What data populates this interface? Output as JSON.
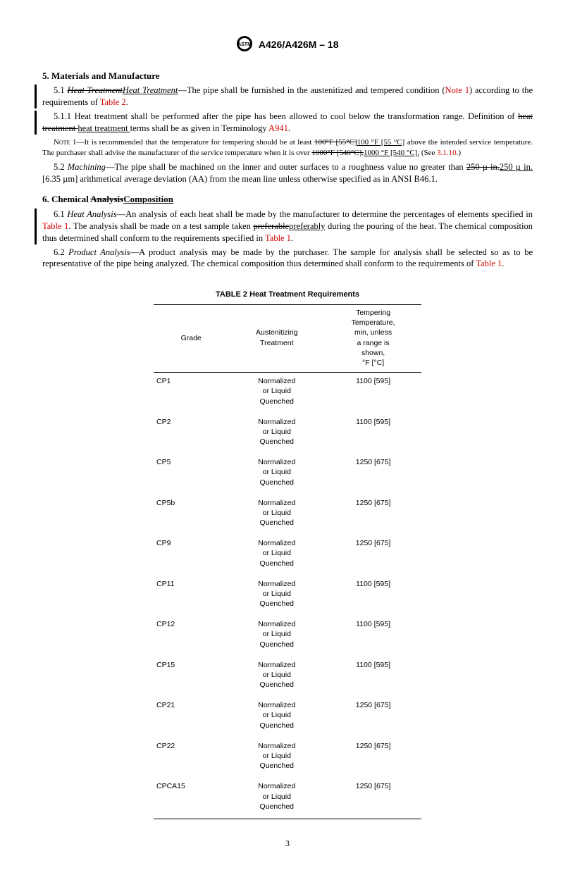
{
  "doc_header": "A426/A426M – 18",
  "sec5": {
    "heading": "5.  Materials and Manufacture",
    "p5_1_num": "5.1  ",
    "p5_1_strike_prefix": "Heat Treatment",
    "p5_1_under_prefix": "Heat Treatment",
    "p5_1_body_a": "—The pipe shall be furnished in the austenitized and tempered condition (",
    "p5_1_note_ref": "Note 1",
    "p5_1_body_b": ") according to the requirements of ",
    "p5_1_table_ref": "Table 2",
    "p5_1_body_c": ".",
    "p5_1_1_num": "5.1.1  ",
    "p5_1_1_body_a": "Heat treatment shall be performed after the pipe has been allowed to cool below the transformation range. Definition of ",
    "p5_1_1_strike": "heat treatment ",
    "p5_1_1_under": "heat treatment ",
    "p5_1_1_body_b": "terms shall be as given in Terminology ",
    "p5_1_1_ref": "A941",
    "p5_1_1_body_c": ".",
    "note1_label": "Note 1—",
    "note1_body_a": "It is recommended that the temperature for tempering should be at least ",
    "note1_strike1": "100°F [55°C]",
    "note1_under1": "100 °F [55 °C]",
    "note1_body_b": " above the intended service temperature. The purchaser shall advise the manufacturer of the service temperature when it is over ",
    "note1_strike2": "1000°F [540°C].",
    "note1_under2": "1000 °F [540 °C].",
    "note1_body_c": " (See ",
    "note1_ref": "3.1.10",
    "note1_body_d": ".)",
    "p5_2_num": "5.2  ",
    "p5_2_prefix_it": "Machining",
    "p5_2_body_a": "—The pipe shall be machined on the inner and outer surfaces to a roughness value no greater than ",
    "p5_2_strike": "250 µ in.",
    "p5_2_under": "250 µ in. ",
    "p5_2_body_b": "[6.35 µm] arithmetical average deviation (AA) from the mean line unless otherwise specified as in ANSI B46.1."
  },
  "sec6": {
    "heading_a": "6.  Chemical ",
    "heading_strike": "Analysis",
    "heading_under": "Composition",
    "p6_1_num": "6.1  ",
    "p6_1_prefix_it": "Heat Analysis",
    "p6_1_body_a": "—An analysis of each heat shall be made by the manufacturer to determine the percentages of elements specified in ",
    "p6_1_ref1": "Table 1",
    "p6_1_body_b": ". The analysis shall be made on a test sample taken ",
    "p6_1_strike": "preferable",
    "p6_1_under": "preferably",
    "p6_1_body_c": " during the pouring of the heat. The chemical composition thus determined shall conform to the requirements specified in ",
    "p6_1_ref2": "Table 1",
    "p6_1_body_d": ".",
    "p6_2_num": "6.2  ",
    "p6_2_prefix_it": "Product Analysis",
    "p6_2_body_a": "—A product analysis may be made by the purchaser. The sample for analysis shall be selected so as to be representative of the pipe being analyzed. The chemical composition thus determined shall conform to the requirements of ",
    "p6_2_ref": "Table 1",
    "p6_2_body_b": "."
  },
  "table2": {
    "title": "TABLE 2 Heat Treatment Requirements",
    "col1": "Grade",
    "col2": "Austenitizing\nTreatment",
    "col3": "Tempering\nTemperature,\nmin, unless\na range is\nshown,\n°F [°C]",
    "rows": [
      {
        "g": "CP1",
        "t": "Normalized\nor Liquid\nQuenched",
        "temp": "1100 [595]"
      },
      {
        "g": "CP2",
        "t": "Normalized\nor Liquid\nQuenched",
        "temp": "1100 [595]"
      },
      {
        "g": "CP5",
        "t": "Normalized\nor Liquid\nQuenched",
        "temp": "1250 [675]"
      },
      {
        "g": "CP5b",
        "t": "Normalized\nor Liquid\nQuenched",
        "temp": "1250 [675]"
      },
      {
        "g": "CP9",
        "t": "Normalized\nor Liquid\nQuenched",
        "temp": "1250 [675]"
      },
      {
        "g": "CP11",
        "t": "Normalized\nor Liquid\nQuenched",
        "temp": "1100 [595]"
      },
      {
        "g": "CP12",
        "t": "Normalized\nor Liquid\nQuenched",
        "temp": "1100 [595]"
      },
      {
        "g": "CP15",
        "t": "Normalized\nor Liquid\nQuenched",
        "temp": "1100 [595]"
      },
      {
        "g": "CP21",
        "t": "Normalized\nor Liquid\nQuenched",
        "temp": "1250 [675]"
      },
      {
        "g": "CP22",
        "t": "Normalized\nor Liquid\nQuenched",
        "temp": "1250 [675]"
      },
      {
        "g": "CPCA15",
        "t": "Normalized\nor Liquid\nQuenched",
        "temp": "1250 [675]"
      }
    ]
  },
  "page_number": "3"
}
